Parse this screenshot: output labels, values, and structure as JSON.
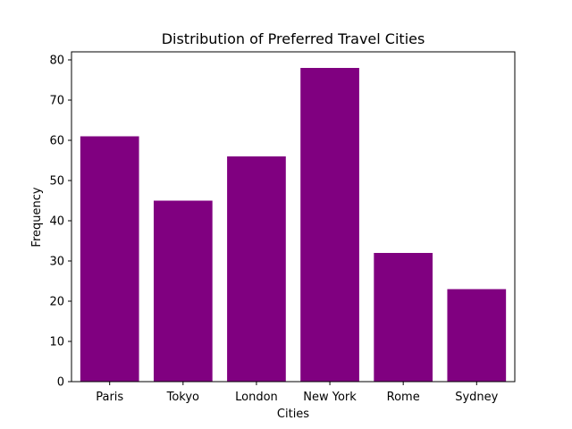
{
  "chart_data": {
    "type": "bar",
    "title": "Distribution of Preferred Travel Cities",
    "xlabel": "Cities",
    "ylabel": "Frequency",
    "categories": [
      "Paris",
      "Tokyo",
      "London",
      "New York",
      "Rome",
      "Sydney"
    ],
    "values": [
      61,
      45,
      56,
      78,
      32,
      23
    ],
    "ylim": [
      0,
      82
    ],
    "yticks": [
      0,
      10,
      20,
      30,
      40,
      50,
      60,
      70,
      80
    ],
    "grid": false,
    "bar_color": "#800080"
  }
}
